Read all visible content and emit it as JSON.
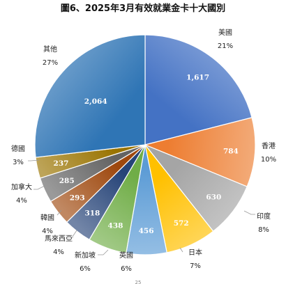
{
  "chart_data": {
    "type": "pie",
    "title": "圖6、2025年3月有效就業金卡十大國別",
    "slices": [
      {
        "label": "美國",
        "value": 1617,
        "value_label": "1,617",
        "percent": "21%",
        "color": "#4472c4"
      },
      {
        "label": "香港",
        "value": 784,
        "value_label": "784",
        "percent": "10%",
        "color": "#ed7d31"
      },
      {
        "label": "印度",
        "value": 630,
        "value_label": "630",
        "percent": "8%",
        "color": "#a5a5a5"
      },
      {
        "label": "日本",
        "value": 572,
        "value_label": "572",
        "percent": "7%",
        "color": "#ffc000"
      },
      {
        "label": "英國",
        "value": 456,
        "value_label": "456",
        "percent": "6%",
        "color": "#5b9bd5"
      },
      {
        "label": "新加坡",
        "value": 438,
        "value_label": "438",
        "percent": "6%",
        "color": "#70ad47"
      },
      {
        "label": "馬來西亞",
        "value": 318,
        "value_label": "318",
        "percent": "4%",
        "color": "#264478"
      },
      {
        "label": "韓國",
        "value": 293,
        "value_label": "293",
        "percent": "4%",
        "color": "#9e480e"
      },
      {
        "label": "加拿大",
        "value": 285,
        "value_label": "285",
        "percent": "4%",
        "color": "#636363"
      },
      {
        "label": "德國",
        "value": 237,
        "value_label": "237",
        "percent": "3%",
        "color": "#997300"
      },
      {
        "label": "其他",
        "value": 2064,
        "value_label": "2,064",
        "percent": "27%",
        "color": "#2f75b5"
      }
    ],
    "footer": "25"
  }
}
